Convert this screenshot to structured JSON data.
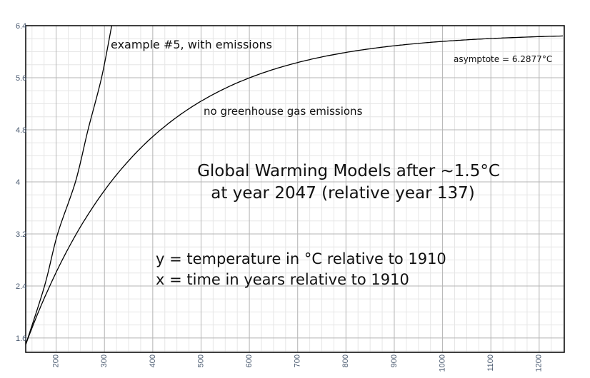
{
  "chart_data": {
    "type": "line",
    "title": "",
    "xlabel": "",
    "ylabel": "",
    "xlim": [
      137,
      1252
    ],
    "ylim": [
      1.38,
      6.4
    ],
    "grid": true,
    "x_ticks": [
      200,
      300,
      400,
      500,
      600,
      700,
      800,
      900,
      1000,
      1100,
      1200
    ],
    "y_ticks": [
      1.6,
      2.4,
      3.2,
      4,
      4.8,
      5.6,
      6.4
    ],
    "x_tick_labels": [
      "200",
      "300",
      "400",
      "500",
      "600",
      "700",
      "800",
      "900",
      "1000",
      "1100",
      "1200"
    ],
    "y_tick_labels": [
      "1.6",
      "2.4",
      "3.2",
      "4",
      "4.8",
      "5.6",
      "6.4"
    ],
    "series": [
      {
        "label": "no greenhouse gas emissions",
        "model": "exponential approach",
        "start": [
          137,
          1.5
        ],
        "asymptote": 6.2877,
        "time_constant": 239
      },
      {
        "label": "example #5, with emissions",
        "points": [
          [
            137,
            1.5
          ],
          [
            176,
            2.4
          ],
          [
            203,
            3.2
          ],
          [
            240,
            4.0
          ],
          [
            266,
            4.8
          ],
          [
            294,
            5.6
          ],
          [
            315,
            6.4
          ]
        ]
      }
    ],
    "annotations": {
      "asymptote": "asymptote = 6.2877°C",
      "title_line1": "Global Warming Models after ~1.5°C",
      "title_line2": "at year 2047 (relative year 137)",
      "y_desc": "y = temperature in °C relative to 1910",
      "x_desc": "x = time in years relative to 1910"
    },
    "line_color": "#000000",
    "grid_major_color": "#b4b4b4",
    "grid_minor_color": "#e6e6e6"
  }
}
